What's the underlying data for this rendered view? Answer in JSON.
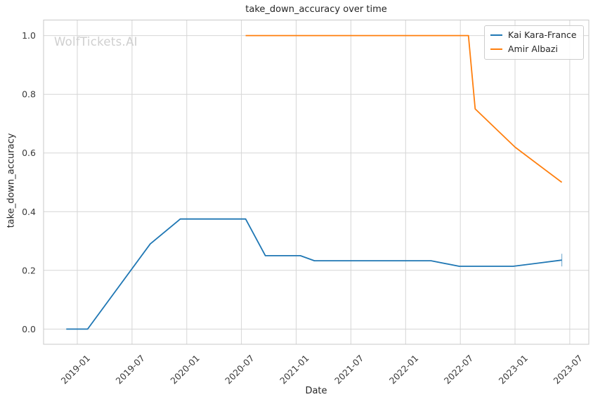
{
  "watermark": {
    "text": "WolfTickets.AI"
  },
  "chart_data": {
    "type": "line",
    "title": "take_down_accuracy over time",
    "xlabel": "Date",
    "ylabel": "take_down_accuracy",
    "grid": true,
    "legend_position": "upper right",
    "x_ticks": [
      "2019-01",
      "2019-07",
      "2020-01",
      "2020-07",
      "2021-01",
      "2021-07",
      "2022-01",
      "2022-07",
      "2023-01",
      "2023-07"
    ],
    "y_ticks": [
      "0.0",
      "0.2",
      "0.4",
      "0.6",
      "0.8",
      "1.0"
    ],
    "xlim": [
      "2018-09",
      "2023-09"
    ],
    "ylim": [
      -0.05,
      1.05
    ],
    "series": [
      {
        "name": "Kai Kara-France",
        "color": "#1f77b4",
        "points": [
          [
            "2018-11-25",
            0.0
          ],
          [
            "2019-02-05",
            0.0
          ],
          [
            "2019-09-01",
            0.29
          ],
          [
            "2019-12-10",
            0.375
          ],
          [
            "2020-07-15",
            0.375
          ],
          [
            "2020-09-20",
            0.25
          ],
          [
            "2021-01-15",
            0.25
          ],
          [
            "2021-03-01",
            0.233
          ],
          [
            "2022-03-25",
            0.233
          ],
          [
            "2022-06-28",
            0.214
          ],
          [
            "2022-12-25",
            0.214
          ],
          [
            "2023-06-05",
            0.235
          ]
        ]
      },
      {
        "name": "Amir Albazi",
        "color": "#ff7f0e",
        "points": [
          [
            "2020-07-15",
            1.0
          ],
          [
            "2022-07-28",
            1.0
          ],
          [
            "2022-08-20",
            0.75
          ],
          [
            "2023-01-01",
            0.62
          ],
          [
            "2023-06-05",
            0.5
          ]
        ]
      }
    ]
  },
  "colors": {
    "series_blue": "#1f77b4",
    "series_orange": "#ff7f0e",
    "gridline": "#d6d6d6",
    "spine": "#c8c8c8",
    "text": "#262626",
    "watermark": "#cfcfcf",
    "background": "#ffffff"
  }
}
